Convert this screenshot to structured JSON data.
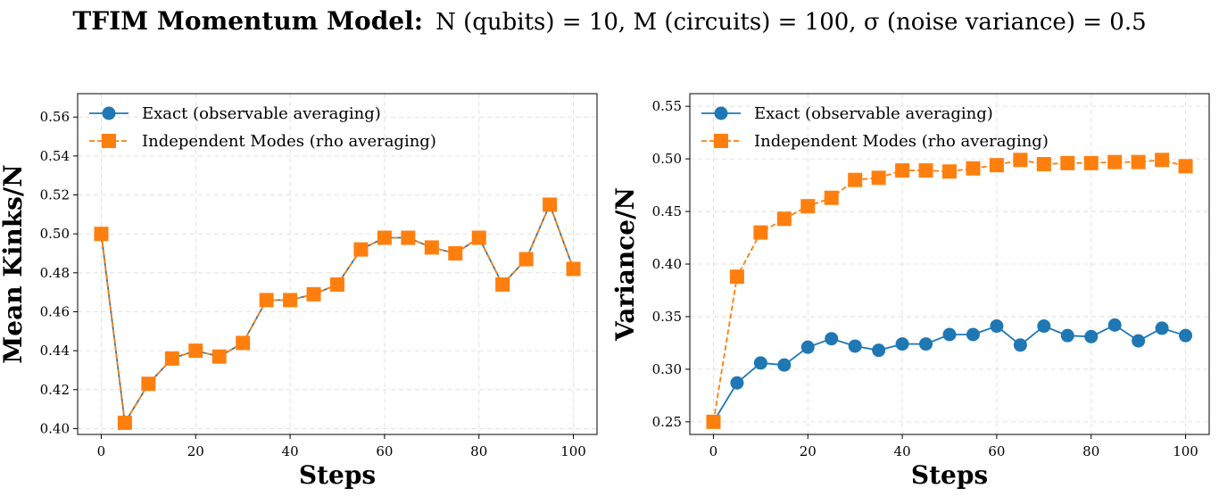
{
  "title": {
    "bold": "TFIM Momentum Model:",
    "rest": "N (qubits) = 10, M (circuits) = 100, σ (noise variance) = 0.5"
  },
  "colors": {
    "exact": "#1f77b4",
    "independent": "#ff7f0e"
  },
  "chart_data": [
    {
      "type": "line",
      "xlabel": "Steps",
      "ylabel": "Mean Kinks/N",
      "xlim": [
        -5,
        105
      ],
      "ylim": [
        0.397,
        0.572
      ],
      "xticks": [
        0,
        20,
        40,
        60,
        80,
        100
      ],
      "yticks": [
        0.4,
        0.42,
        0.44,
        0.46,
        0.48,
        0.5,
        0.52,
        0.54,
        0.56
      ],
      "ytick_decimals": 2,
      "grid": true,
      "legend": "top-left",
      "x": [
        0,
        5,
        10,
        15,
        20,
        25,
        30,
        35,
        40,
        45,
        50,
        55,
        60,
        65,
        70,
        75,
        80,
        85,
        90,
        95,
        100
      ],
      "series": [
        {
          "name": "Exact (observable averaging)",
          "marker": "circle",
          "linestyle": "solid",
          "color_key": "exact",
          "values": [
            0.5,
            0.403,
            0.423,
            0.436,
            0.44,
            0.437,
            0.444,
            0.466,
            0.466,
            0.469,
            0.474,
            0.492,
            0.498,
            0.498,
            0.493,
            0.49,
            0.498,
            0.474,
            0.487,
            0.515,
            0.482
          ]
        },
        {
          "name": "Independent Modes (rho averaging)",
          "marker": "square",
          "linestyle": "dashed",
          "color_key": "independent",
          "values": [
            0.5,
            0.403,
            0.423,
            0.436,
            0.44,
            0.437,
            0.444,
            0.466,
            0.466,
            0.469,
            0.474,
            0.492,
            0.498,
            0.498,
            0.493,
            0.49,
            0.498,
            0.474,
            0.487,
            0.515,
            0.482
          ]
        }
      ]
    },
    {
      "type": "line",
      "xlabel": "Steps",
      "ylabel": "Variance/N",
      "xlim": [
        -5,
        105
      ],
      "ylim": [
        0.238,
        0.562
      ],
      "xticks": [
        0,
        20,
        40,
        60,
        80,
        100
      ],
      "yticks": [
        0.25,
        0.3,
        0.35,
        0.4,
        0.45,
        0.5,
        0.55
      ],
      "ytick_decimals": 2,
      "grid": true,
      "legend": "top-left",
      "x": [
        0,
        5,
        10,
        15,
        20,
        25,
        30,
        35,
        40,
        45,
        50,
        55,
        60,
        65,
        70,
        75,
        80,
        85,
        90,
        95,
        100
      ],
      "series": [
        {
          "name": "Exact (observable averaging)",
          "marker": "circle",
          "linestyle": "solid",
          "color_key": "exact",
          "values": [
            0.25,
            0.287,
            0.306,
            0.304,
            0.321,
            0.329,
            0.322,
            0.318,
            0.324,
            0.324,
            0.333,
            0.333,
            0.341,
            0.323,
            0.341,
            0.332,
            0.331,
            0.342,
            0.327,
            0.339,
            0.332
          ]
        },
        {
          "name": "Independent Modes (rho averaging)",
          "marker": "square",
          "linestyle": "dashed",
          "color_key": "independent",
          "values": [
            0.25,
            0.388,
            0.43,
            0.443,
            0.455,
            0.463,
            0.48,
            0.482,
            0.489,
            0.489,
            0.488,
            0.491,
            0.494,
            0.499,
            0.495,
            0.496,
            0.496,
            0.497,
            0.497,
            0.499,
            0.493
          ]
        }
      ]
    }
  ]
}
